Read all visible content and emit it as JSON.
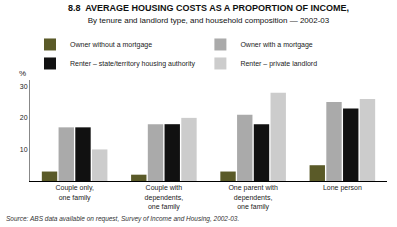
{
  "chart_data": {
    "type": "bar",
    "title": "8.8  AVERAGE HOUSING COSTS AS A PROPORTION OF INCOME,",
    "subtitle": "By tenure and landlord type, and household composition — 2002-03",
    "ylabel": "%",
    "source": "Source: ABS data available on request, Survey of Income and Housing, 2002-03.",
    "categories": [
      "Couple only,\none family",
      "Couple with\ndependents,\none family",
      "One parent with\ndependents,\none family",
      "Lone person"
    ],
    "series": [
      {
        "name": "Owner without a mortgage",
        "color": "#5a5a28",
        "values": [
          3,
          2,
          3,
          5
        ]
      },
      {
        "name": "Owner with a mortgage",
        "color": "#aaaaaa",
        "values": [
          17,
          18,
          21,
          25
        ]
      },
      {
        "name": "Renter – state/territory housing authority",
        "color": "#111111",
        "values": [
          17,
          18,
          18,
          23
        ]
      },
      {
        "name": "Renter – private landlord",
        "color": "#cccccc",
        "values": [
          10,
          20,
          28,
          26
        ]
      }
    ],
    "ylim": [
      0,
      32
    ],
    "yticks": [
      10,
      20,
      30
    ],
    "grid": false,
    "legend": "top"
  }
}
